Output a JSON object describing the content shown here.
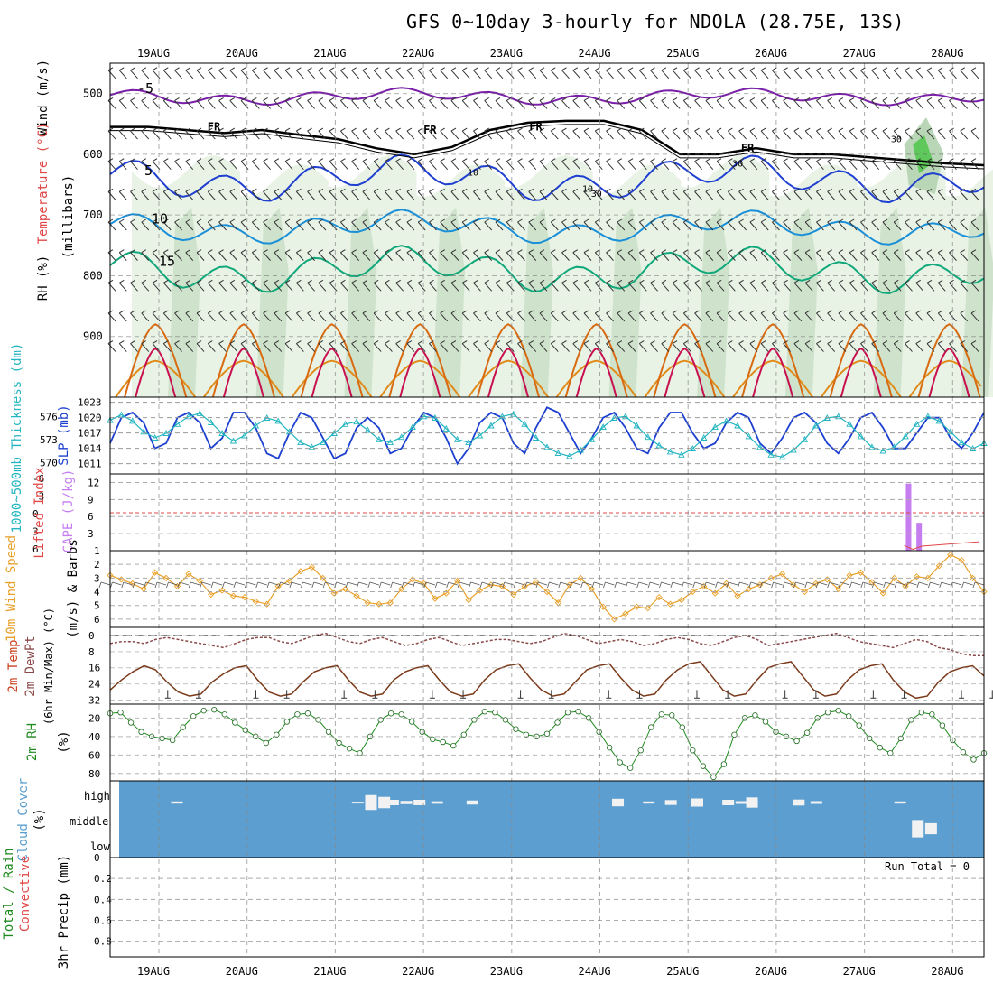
{
  "title": "GFS 0~10day 3-hourly for NDOLA (28.75E, 13S)",
  "days": [
    "19AUG",
    "20AUG",
    "21AUG",
    "22AUG",
    "23AUG",
    "24AUG",
    "25AUG",
    "26AUG",
    "27AUG",
    "28AUG"
  ],
  "chart_data": [
    {
      "type": "heatmap",
      "panel": "upper-air",
      "ylabels": [
        "Wind (m/s)",
        "Temperature (°C)",
        "RH (%)",
        "(millibars)"
      ],
      "y_ticks": [
        500,
        600,
        700,
        800,
        900
      ],
      "ylim": [
        1000,
        450
      ],
      "contour_labels": [
        "-5",
        "FR",
        "5",
        "10",
        "15",
        "10",
        "30",
        "-5"
      ],
      "freezing_level_hpa": [
        555,
        555,
        560,
        565,
        560,
        568,
        575,
        590,
        600,
        588,
        560,
        548,
        545,
        545,
        560,
        600,
        600,
        590,
        600,
        600,
        605,
        610,
        615,
        618
      ]
    },
    {
      "type": "line",
      "panel": "slp-thickness",
      "ylabels": [
        "1000~500mb Thickness (dm)",
        "SLP (mb)"
      ],
      "left_ticks": [
        576,
        573,
        570
      ],
      "right_ticks": [
        1023,
        1020,
        1017,
        1014,
        1011
      ],
      "series": [
        {
          "name": "SLP (mb)",
          "values": [
            1015,
            1020,
            1021,
            1019,
            1014,
            1015,
            1020,
            1021,
            1019,
            1014,
            1016,
            1021,
            1021,
            1018,
            1013,
            1012,
            1017,
            1021,
            1020,
            1016,
            1012,
            1013,
            1018,
            1020,
            1018,
            1013,
            1014,
            1018,
            1021,
            1020,
            1016,
            1011,
            1014,
            1019,
            1021,
            1020,
            1015,
            1013,
            1018,
            1022,
            1021,
            1017,
            1013,
            1016,
            1020,
            1021,
            1018,
            1014,
            1013,
            1018,
            1021,
            1021,
            1017,
            1014,
            1015,
            1019,
            1021,
            1020,
            1015,
            1013,
            1016,
            1020,
            1021,
            1019,
            1015,
            1013,
            1016,
            1020,
            1021,
            1018,
            1014,
            1014,
            1017,
            1020,
            1020,
            1016,
            1014,
            1017,
            1021
          ]
        },
        {
          "name": "1000~500mb Thickness (dm)",
          "values": [
            575.5,
            576.2,
            575.4,
            574.0,
            573.2,
            573.8,
            575.0,
            576.0,
            576.4,
            575.2,
            573.8,
            572.8,
            573.5,
            574.8,
            575.8,
            575.4,
            574.0,
            572.6,
            572.0,
            572.6,
            573.8,
            575.0,
            575.3,
            574.2,
            573.0,
            572.6,
            573.3,
            574.6,
            576.0,
            575.8,
            574.4,
            573.0,
            572.6,
            573.5,
            574.8,
            576.0,
            576.3,
            575.0,
            573.2,
            572.0,
            571.2,
            570.8,
            571.6,
            573.0,
            574.6,
            575.8,
            576.0,
            574.8,
            573.3,
            572.2,
            571.4,
            571.0,
            571.8,
            573.2,
            574.6,
            575.4,
            574.8,
            573.4,
            572.0,
            571.0,
            570.7,
            571.6,
            573.0,
            574.8,
            575.8,
            576.0,
            575.0,
            573.4,
            572.0,
            571.5,
            572.0,
            573.4,
            575.0,
            576.0,
            575.4,
            574.0,
            572.6,
            571.8,
            572.5
          ]
        }
      ]
    },
    {
      "type": "bar",
      "panel": "cape-lifted-index",
      "ylabels": [
        "Lifted Index",
        "CAPE (J/kg)"
      ],
      "left_ticks": [
        "-6",
        "-3",
        "0",
        "3",
        "6"
      ],
      "right_ticks": [
        12,
        9,
        6,
        3
      ],
      "bars": [
        {
          "day": 8.5,
          "value": 11.8
        },
        {
          "day": 8.62,
          "value": 4.9
        }
      ],
      "lifted_index": [
        {
          "day": 8.45,
          "value": 5.2
        },
        {
          "day": 8.55,
          "value": 5.8
        },
        {
          "day": 8.65,
          "value": 5.3
        },
        {
          "day": 9.3,
          "value": 4.6
        }
      ]
    },
    {
      "type": "line",
      "panel": "10m-wind",
      "ylabels": [
        "10m Wind Speed",
        "(m/s) & Barbs"
      ],
      "y_ticks": [
        1,
        2,
        3,
        4,
        5,
        6
      ],
      "ylim": [
        1,
        6.6
      ],
      "series": [
        {
          "name": "10m Wind Speed",
          "values": [
            2.8,
            3.1,
            3.4,
            3.8,
            2.6,
            3.0,
            3.6,
            2.7,
            3.2,
            4.2,
            3.9,
            4.3,
            4.4,
            4.7,
            4.9,
            3.6,
            3.2,
            2.5,
            2.2,
            3.0,
            4.1,
            3.8,
            4.3,
            4.8,
            4.9,
            4.8,
            3.8,
            3.1,
            3.4,
            4.5,
            4.1,
            3.2,
            4.6,
            3.9,
            3.5,
            3.6,
            4.2,
            3.6,
            3.3,
            4.0,
            4.8,
            3.5,
            3.0,
            3.8,
            5.1,
            6.0,
            5.6,
            5.1,
            5.2,
            4.4,
            4.9,
            4.6,
            4.0,
            3.6,
            4.1,
            3.4,
            4.3,
            3.8,
            3.5,
            3.0,
            2.7,
            3.5,
            4.0,
            3.4,
            3.1,
            3.8,
            2.8,
            2.6,
            3.3,
            4.1,
            3.0,
            3.6,
            2.9,
            3.0,
            2.1,
            1.3,
            1.7,
            3.0,
            4.0
          ]
        }
      ]
    },
    {
      "type": "area",
      "panel": "2m-temp",
      "ylabels": [
        "2m Temp",
        "2m DewPt",
        "(6hr Min/Max) (°C)"
      ],
      "y_ticks": [
        0,
        8,
        16,
        24,
        32
      ],
      "ylim": [
        -4,
        34
      ],
      "series": [
        {
          "name": "2m Temp",
          "values": [
            27,
            22,
            18,
            15,
            17,
            23,
            28,
            30,
            29,
            23,
            19,
            16,
            15,
            22,
            28,
            30,
            29,
            23,
            18,
            16,
            15,
            22,
            28,
            30,
            29,
            22,
            18,
            16,
            15,
            22,
            28,
            30,
            29,
            22,
            17,
            15,
            14,
            21,
            27,
            30,
            29,
            23,
            17,
            15,
            14,
            21,
            27,
            30,
            29,
            22,
            17,
            14,
            13,
            20,
            27,
            30,
            29,
            22,
            16,
            14,
            13,
            20,
            27,
            30,
            29,
            22,
            17,
            15,
            14,
            22,
            28,
            31,
            30,
            23,
            18,
            16,
            15,
            20
          ]
        },
        {
          "name": "2m DewPt",
          "values": [
            4,
            3,
            3,
            4,
            2,
            1,
            2,
            3,
            4,
            5,
            6,
            4,
            2,
            1,
            1,
            3,
            4,
            2,
            0,
            -1,
            1,
            3,
            4,
            2,
            1,
            3,
            5,
            4,
            2,
            1,
            3,
            5,
            4,
            3,
            2,
            2,
            3,
            4,
            3,
            1,
            -1,
            0,
            2,
            4,
            3,
            2,
            3,
            5,
            4,
            2,
            1,
            2,
            4,
            5,
            3,
            1,
            0,
            2,
            5,
            4,
            3,
            2,
            1,
            0,
            -1,
            1,
            3,
            4,
            5,
            6,
            4,
            2,
            3,
            6,
            7,
            9,
            10,
            10
          ]
        }
      ]
    },
    {
      "type": "area",
      "panel": "2m-rh",
      "ylabels": [
        "2m RH",
        "(%)"
      ],
      "y_ticks": [
        20,
        40,
        60,
        80
      ],
      "ylim": [
        5,
        88
      ],
      "series": [
        {
          "name": "2m RH",
          "values": [
            15,
            14,
            25,
            35,
            40,
            42,
            44,
            30,
            18,
            12,
            11,
            16,
            25,
            33,
            40,
            47,
            38,
            24,
            16,
            15,
            22,
            35,
            47,
            53,
            58,
            40,
            22,
            15,
            16,
            24,
            35,
            43,
            46,
            50,
            38,
            22,
            13,
            14,
            22,
            32,
            38,
            40,
            37,
            25,
            14,
            13,
            20,
            35,
            52,
            68,
            74,
            55,
            30,
            16,
            17,
            30,
            55,
            72,
            84,
            70,
            38,
            20,
            17,
            24,
            35,
            40,
            45,
            36,
            20,
            14,
            12,
            18,
            28,
            42,
            52,
            58,
            42,
            22,
            14,
            16,
            28,
            44,
            57,
            65,
            58
          ]
        }
      ]
    },
    {
      "type": "bar",
      "panel": "cloud-cover",
      "ylabels": [
        "Cloud Cover",
        "(%)"
      ],
      "y_ticks": [
        "high",
        "middle",
        "low"
      ],
      "high": [
        {
          "day": 0.2,
          "value": 8
        },
        {
          "day": 2.25,
          "value": 6
        },
        {
          "day": 2.4,
          "value": 55
        },
        {
          "day": 2.55,
          "value": 42
        },
        {
          "day": 2.65,
          "value": 20
        },
        {
          "day": 2.8,
          "value": 12
        },
        {
          "day": 2.95,
          "value": 20
        },
        {
          "day": 3.15,
          "value": 9
        },
        {
          "day": 3.55,
          "value": 15
        },
        {
          "day": 5.2,
          "value": 28
        },
        {
          "day": 5.55,
          "value": 8
        },
        {
          "day": 5.8,
          "value": 18
        },
        {
          "day": 6.1,
          "value": 30
        },
        {
          "day": 6.45,
          "value": 20
        },
        {
          "day": 6.6,
          "value": 10
        },
        {
          "day": 6.72,
          "value": 38
        },
        {
          "day": 7.25,
          "value": 22
        },
        {
          "day": 7.45,
          "value": 10
        },
        {
          "day": 8.4,
          "value": 8
        }
      ],
      "middle": [
        {
          "day": 8.6,
          "value": 55
        },
        {
          "day": 8.75,
          "value": 35
        }
      ]
    },
    {
      "type": "bar",
      "panel": "3hr-precip",
      "ylabels": [
        "Total / Rain",
        "Convective",
        "3hr Precip (mm)"
      ],
      "y_ticks": [
        0,
        0.2,
        0.4,
        0.6,
        0.8
      ],
      "ylim": [
        0,
        0.95
      ],
      "annotation": "Run Total = 0",
      "values": []
    }
  ]
}
